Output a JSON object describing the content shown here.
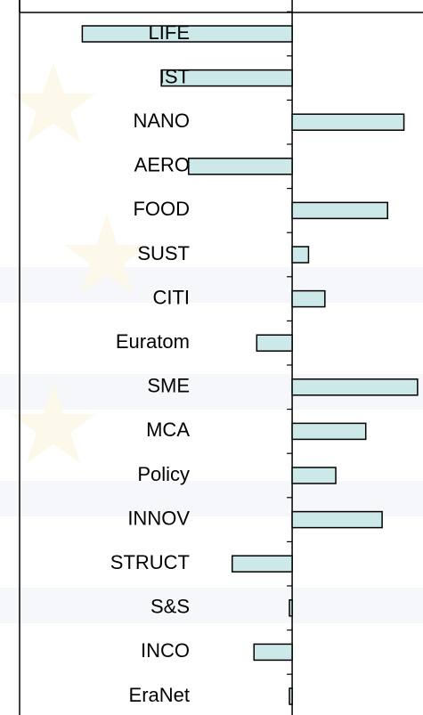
{
  "chart_data": {
    "type": "bar",
    "orientation": "horizontal",
    "categories": [
      "LIFE",
      "IST",
      "NANO",
      "AERO",
      "FOOD",
      "SUST",
      "CITI",
      "Euratom",
      "SME",
      "MCA",
      "Policy",
      "INNOV",
      "STRUCT",
      "S&S",
      "INCO",
      "EraNet"
    ],
    "values": [
      -77,
      -48,
      41,
      -38,
      35,
      6,
      12,
      -13,
      46,
      27,
      16,
      33,
      -22,
      -1,
      -14,
      -1
    ],
    "color": "#cce8e8",
    "xlim": [
      -100,
      48
    ],
    "xticks": [
      -100,
      0
    ]
  }
}
